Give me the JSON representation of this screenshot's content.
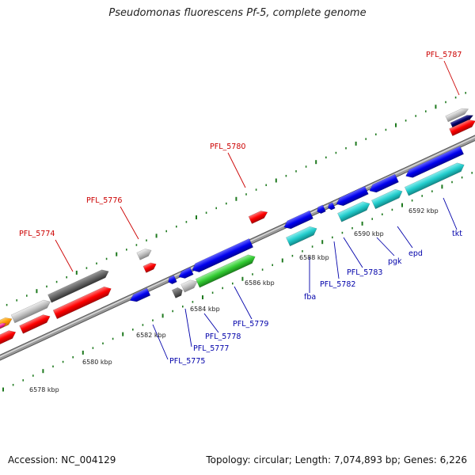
{
  "title": "Pseudomonas fluorescens Pf-5, complete genome",
  "footer": {
    "accession": "Accession: NC_004129",
    "topology": "Topology: circular; Length: 7,074,893 bp; Genes: 6,226"
  },
  "scale_labels": [
    "6578 kbp",
    "6580 kbp",
    "6582 kbp",
    "6584 kbp",
    "6586 kbp",
    "6588 kbp",
    "6590 kbp",
    "6592 kbp"
  ],
  "gene_labels_top": [
    "PFL_5774",
    "PFL_5776",
    "PFL_5780",
    "PFL_5787"
  ],
  "gene_labels_bottom": [
    "PFL_5775",
    "PFL_5777",
    "PFL_5778",
    "PFL_5779",
    "fba",
    "PFL_5782",
    "PFL_5783",
    "pgk",
    "epd",
    "tkt"
  ],
  "colors": {
    "backbone": "#808080",
    "tick": "#1f7a1f",
    "gene_red": "#ff0000",
    "gene_blue": "#0000ee",
    "gene_cyan": "#22cccc",
    "gene_green": "#33cc33",
    "gene_dark_gray": "#666666",
    "gene_light_gray": "#c0c0c0",
    "label_red": "#cc0000",
    "label_blue": "#0000aa"
  }
}
